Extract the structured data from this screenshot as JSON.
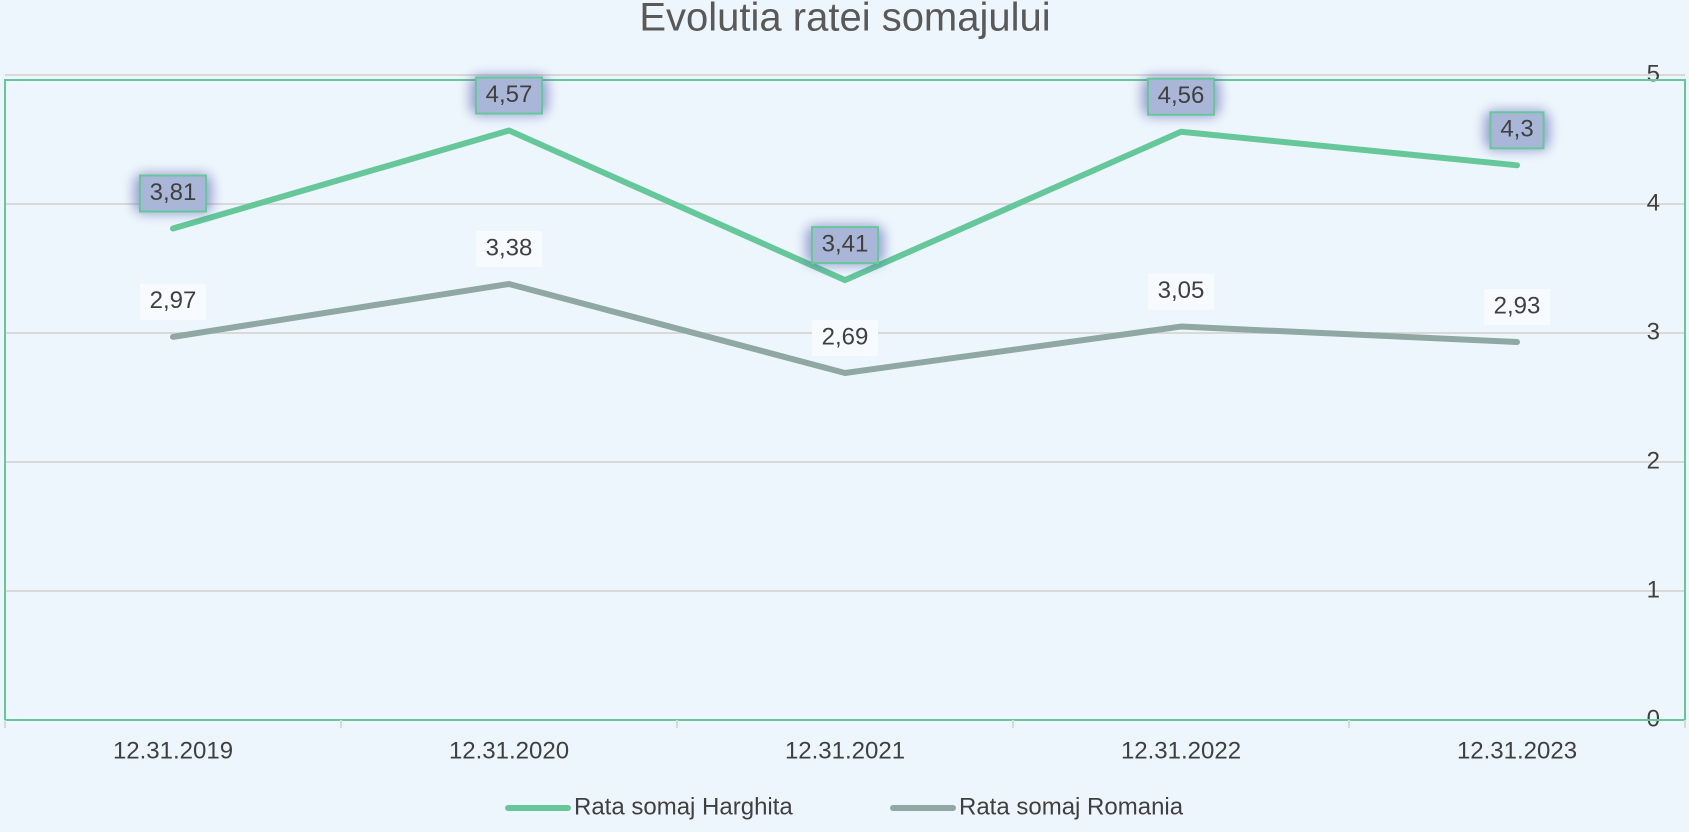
{
  "chart_data": {
    "type": "line",
    "title": "Evolutia ratei somajului",
    "categories": [
      "12.31.2019",
      "12.31.2020",
      "12.31.2021",
      "12.31.2022",
      "12.31.2023"
    ],
    "series": [
      {
        "name": "Rata somaj Harghita",
        "color": "#66c89a",
        "values": [
          3.81,
          4.57,
          3.41,
          4.56,
          4.3
        ],
        "value_labels": [
          "3,81",
          "4,57",
          "3,41",
          "4,56",
          "4,3"
        ]
      },
      {
        "name": "Rata somaj Romania",
        "color": "#8fa8a3",
        "values": [
          2.97,
          3.38,
          2.69,
          3.05,
          2.93
        ],
        "value_labels": [
          "2,97",
          "3,38",
          "2,69",
          "3,05",
          "2,93"
        ]
      }
    ],
    "ylim": [
      0,
      5
    ],
    "yticks": [
      0,
      1,
      2,
      3,
      4,
      5
    ],
    "grid": true,
    "legend": "bottom"
  }
}
